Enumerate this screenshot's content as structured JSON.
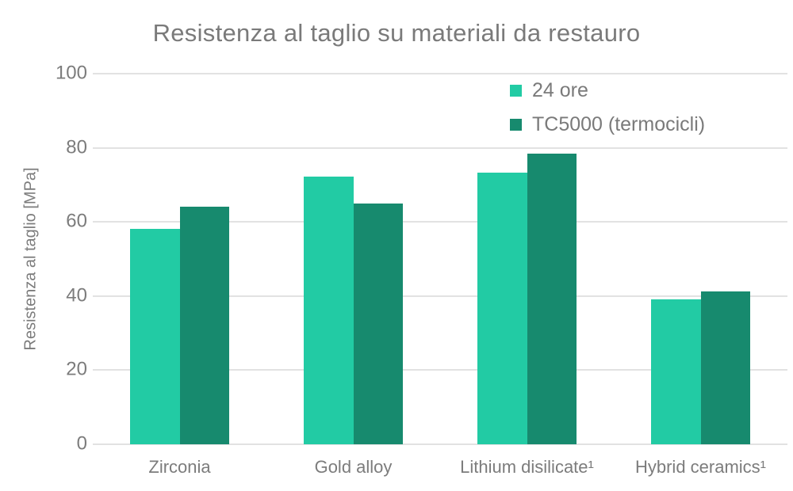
{
  "chart_data": {
    "type": "bar",
    "title": "Resistenza al taglio su materiali da restauro",
    "xlabel": "",
    "ylabel": "Resistenza al taglio [MPa]",
    "categories": [
      "Zirconia",
      "Gold alloy",
      "Lithium disilicate¹",
      "Hybrid ceramics¹"
    ],
    "series": [
      {
        "name": "24 ore",
        "color": "#22cba4",
        "values": [
          58.2,
          72.3,
          73.4,
          39.0
        ]
      },
      {
        "name": "TC5000 (termocicli)",
        "color": "#178a6e",
        "values": [
          64.0,
          65.0,
          78.4,
          41.3
        ]
      }
    ],
    "ylim": [
      0,
      100
    ],
    "yticks": [
      0,
      20,
      40,
      60,
      80,
      100
    ],
    "grid": true,
    "legend_position": "top-right"
  },
  "colors": {
    "background": "#ffffff",
    "text": "#7a7a7a",
    "gridline": "#e2e2e2",
    "series_light": "#22cba4",
    "series_dark": "#178a6e"
  }
}
